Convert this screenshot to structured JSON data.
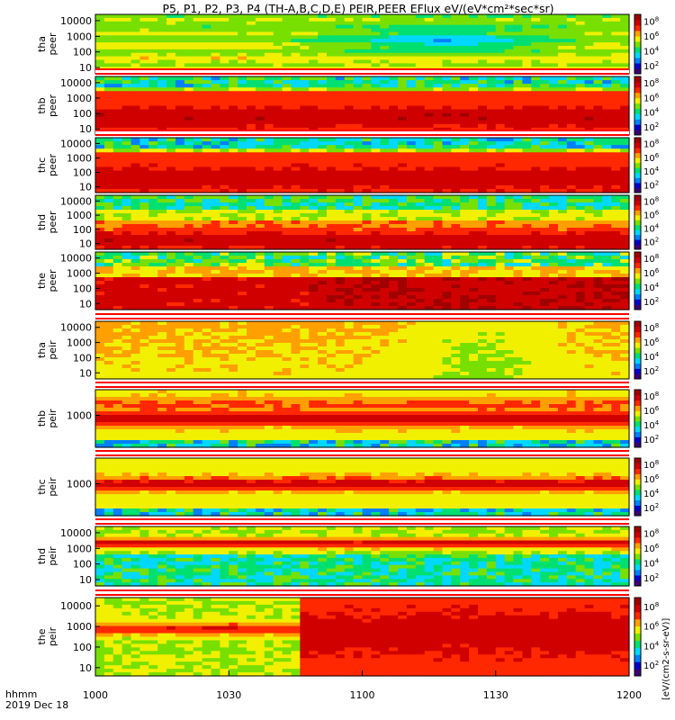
{
  "chart_data": {
    "type": "heatmap",
    "title": "P5, P1, P2, P3, P4 (TH-A,B,C,D,E) PEIR,PEER EFlux eV/(eV*cm²*sec*sr)",
    "time_axis": {
      "ticks": [
        "1000",
        "1030",
        "1100",
        "1130",
        "1200"
      ],
      "tick_minutes": [
        0,
        30,
        60,
        90,
        120
      ],
      "range_minutes": [
        0,
        120
      ],
      "label_line1": "hhmm",
      "label_line2": "2019 Dec 18"
    },
    "colorbar": {
      "scale": "log",
      "tick_exponents": [
        2,
        4,
        6,
        8
      ],
      "unit_label": "[eV/(cm2-s-sr-eV)]",
      "colors": [
        "#3a0070",
        "#0000c8",
        "#0080ff",
        "#00d8ff",
        "#00e070",
        "#78e000",
        "#f0f000",
        "#ffa000",
        "#ff2800",
        "#d00000",
        "#a00000"
      ]
    },
    "panels": [
      {
        "probe": "tha",
        "instrument": "peer",
        "y_ticks": [
          "10000",
          "1000",
          "100",
          "10"
        ],
        "y_log_range": [
          0.6,
          4.4
        ],
        "style": "a_e",
        "flag_bar": false
      },
      {
        "probe": "thb",
        "instrument": "peer",
        "y_ticks": [
          "10000",
          "1000",
          "100",
          "10"
        ],
        "y_log_range": [
          0.6,
          4.4
        ],
        "style": "b_e",
        "flag_bar": true
      },
      {
        "probe": "thc",
        "instrument": "peer",
        "y_ticks": [
          "10000",
          "1000",
          "100",
          "10"
        ],
        "y_log_range": [
          0.6,
          4.4
        ],
        "style": "c_e",
        "flag_bar": true
      },
      {
        "probe": "thd",
        "instrument": "peer",
        "y_ticks": [
          "10000",
          "1000",
          "100",
          "10"
        ],
        "y_log_range": [
          0.6,
          4.4
        ],
        "style": "d_e",
        "flag_bar": false
      },
      {
        "probe": "the",
        "instrument": "peer",
        "y_ticks": [
          "10000",
          "1000",
          "100",
          "10"
        ],
        "y_log_range": [
          0.6,
          4.4
        ],
        "style": "e_e",
        "flag_bar": false
      },
      {
        "probe": "tha",
        "instrument": "peir",
        "y_ticks": [
          "10000",
          "1000",
          "100",
          "10"
        ],
        "y_log_range": [
          0.6,
          4.4
        ],
        "style": "a_i",
        "flag_bar": true
      },
      {
        "probe": "thb",
        "instrument": "peir",
        "y_ticks": [
          "1000"
        ],
        "y_log_range": [
          1.5,
          4.2
        ],
        "style": "b_i",
        "flag_bar": true
      },
      {
        "probe": "thc",
        "instrument": "peir",
        "y_ticks": [
          "1000"
        ],
        "y_log_range": [
          1.5,
          4.2
        ],
        "style": "c_i",
        "flag_bar": true
      },
      {
        "probe": "thd",
        "instrument": "peir",
        "y_ticks": [
          "10000",
          "1000",
          "100",
          "10"
        ],
        "y_log_range": [
          0.6,
          4.4
        ],
        "style": "d_i",
        "flag_bar": true
      },
      {
        "probe": "the",
        "instrument": "peir",
        "y_ticks": [
          "10000",
          "1000",
          "100",
          "10"
        ],
        "y_log_range": [
          0.6,
          4.4
        ],
        "style": "e_i",
        "flag_bar": true
      }
    ]
  }
}
